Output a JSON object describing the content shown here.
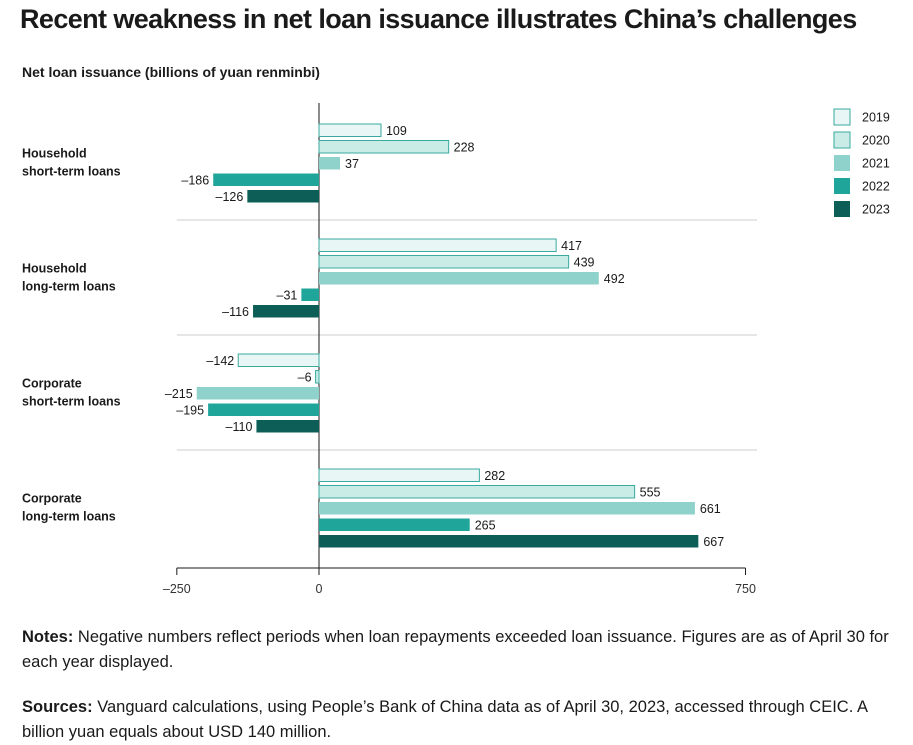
{
  "title": "Recent weakness in net loan issuance illustrates China’s challenges",
  "subtitle": "Net loan issuance (billions of yuan renminbi)",
  "notes": {
    "label": "Notes:",
    "text": " Negative numbers reflect periods when loan repayments exceeded loan issuance. Figures are as of April 30 for each year displayed."
  },
  "sources": {
    "label": "Sources:",
    "text": " Vanguard calculations, using People’s Bank of China data as of April 30, 2023, accessed through CEIC. A billion yuan equals about USD 140 million."
  },
  "colors": {
    "2019": "#e8f6f5",
    "2020": "#c9ece7",
    "2021": "#8fd2cb",
    "2022": "#20a59a",
    "2023": "#0e5e58",
    "border": "#3aa99e",
    "grid": "#cccccc",
    "axis": "#1a1a1a"
  },
  "chart_data": {
    "type": "bar",
    "orientation": "horizontal",
    "categories": [
      [
        "Household",
        "short-term loans"
      ],
      [
        "Household",
        "long-term loans"
      ],
      [
        "Corporate",
        "short-term loans"
      ],
      [
        "Corporate",
        "long-term loans"
      ]
    ],
    "series": [
      {
        "name": "2019",
        "values": [
          109,
          417,
          -142,
          282
        ],
        "labels": [
          "109",
          "417",
          "–142",
          "282"
        ]
      },
      {
        "name": "2020",
        "values": [
          228,
          439,
          -6,
          555
        ],
        "labels": [
          "228",
          "439",
          "–6",
          "555"
        ]
      },
      {
        "name": "2021",
        "values": [
          37,
          492,
          -215,
          661
        ],
        "labels": [
          "37",
          "492",
          "–215",
          "661"
        ]
      },
      {
        "name": "2022",
        "values": [
          -186,
          -31,
          -195,
          265
        ],
        "labels": [
          "–186",
          "–31",
          "–195",
          "265"
        ]
      },
      {
        "name": "2023",
        "values": [
          -126,
          -116,
          -110,
          667
        ],
        "labels": [
          "–126",
          "–116",
          "–110",
          "667"
        ]
      }
    ],
    "xlim": [
      -250,
      750
    ],
    "xticks": [
      -250,
      0,
      750
    ],
    "xtick_labels": [
      "–250",
      "0",
      "750"
    ],
    "legend_position": "top-right",
    "grid": false
  }
}
